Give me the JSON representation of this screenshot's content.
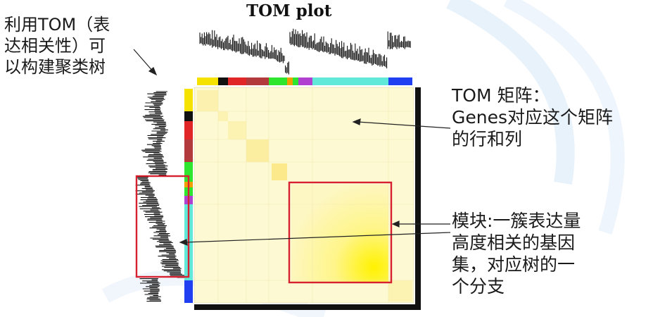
{
  "figure": {
    "title": "TOM plot"
  },
  "annotations": {
    "left": [
      "利用TOM（表",
      "达相关性）可",
      "以构建聚类树"
    ],
    "tom": [
      "TOM 矩阵：",
      "Genes对应这个矩阵",
      "的行和列"
    ],
    "module": [
      "模块:一簇表达量",
      "高度相关的基因",
      "集，对应树的一",
      "个分支"
    ]
  },
  "colors": {
    "matrix_bg": "#fdf9d2",
    "module_fill": "#fff36a",
    "highlight_box": "#d62230",
    "module_bar": [
      "#f5e200",
      "#111111",
      "#e02626",
      "#b23a3a",
      "#2ee62e",
      "#f0a000",
      "#b040d0",
      "#60e8d8",
      "#1f3ff0"
    ]
  }
}
